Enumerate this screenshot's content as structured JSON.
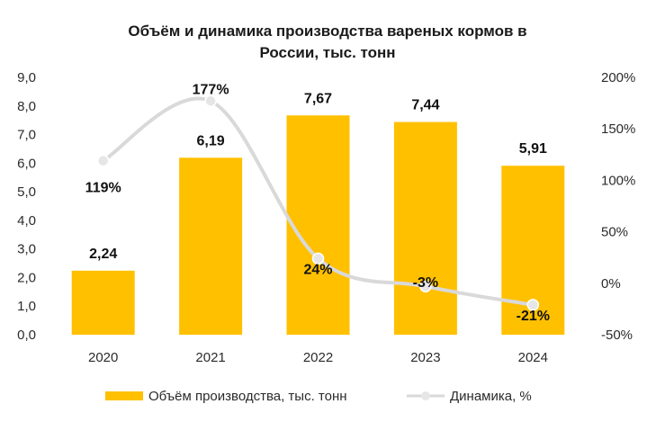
{
  "chart_data": {
    "type": "bar+line",
    "title_lines": [
      "Объём и динамика производства вареных кормов в",
      "России, тыс. тонн"
    ],
    "categories": [
      "2020",
      "2021",
      "2022",
      "2023",
      "2024"
    ],
    "series": [
      {
        "name": "Объём производства, тыс. тонн",
        "kind": "bar",
        "axis": "left",
        "color": "#FFC000",
        "values": [
          2.24,
          6.19,
          7.67,
          7.44,
          5.91
        ],
        "labels": [
          "2,24",
          "6,19",
          "7,67",
          "7,44",
          "5,91"
        ]
      },
      {
        "name": "Динамика, %",
        "kind": "line",
        "axis": "right",
        "color": "#D9D9D9",
        "values": [
          119,
          177,
          24,
          -3,
          -21
        ],
        "labels": [
          "119%",
          "177%",
          "24%",
          "-3%",
          "-21%"
        ]
      }
    ],
    "left_axis": {
      "ylim": [
        0,
        9
      ],
      "ticks": [
        0,
        1,
        2,
        3,
        4,
        5,
        6,
        7,
        8,
        9
      ],
      "tick_labels": [
        "0,0",
        "1,0",
        "2,0",
        "3,0",
        "4,0",
        "5,0",
        "6,0",
        "7,0",
        "8,0",
        "9,0"
      ]
    },
    "right_axis": {
      "ylim": [
        -50,
        200
      ],
      "ticks": [
        -50,
        0,
        50,
        100,
        150,
        200
      ],
      "tick_labels": [
        "-50%",
        "0%",
        "50%",
        "100%",
        "150%",
        "200%"
      ]
    },
    "grid": false,
    "legend_position": "bottom"
  }
}
